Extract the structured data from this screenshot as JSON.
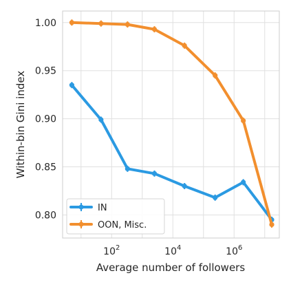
{
  "chart_data": {
    "type": "line",
    "xlabel": "Average number of followers",
    "ylabel": "Within-bin Gini index",
    "x_scale": "log",
    "xlim": [
      2.5,
      30000000
    ],
    "ylim": [
      0.776,
      1.012
    ],
    "grid": true,
    "legend_position": "lower-left",
    "x_ticks": [
      {
        "value": 100,
        "base": "10",
        "exp": "2"
      },
      {
        "value": 10000,
        "base": "10",
        "exp": "4"
      },
      {
        "value": 1000000,
        "base": "10",
        "exp": "6"
      }
    ],
    "y_ticks": [
      {
        "value": 0.8,
        "label": "0.80"
      },
      {
        "value": 0.85,
        "label": "0.85"
      },
      {
        "value": 0.9,
        "label": "0.90"
      },
      {
        "value": 0.95,
        "label": "0.95"
      },
      {
        "value": 1.0,
        "label": "1.00"
      }
    ],
    "series": [
      {
        "name": "IN",
        "color": "#2b9ae2",
        "x": [
          5,
          45,
          330,
          2500,
          24000,
          240000,
          2000000,
          17000000
        ],
        "y": [
          0.935,
          0.899,
          0.848,
          0.843,
          0.83,
          0.818,
          0.834,
          0.795
        ]
      },
      {
        "name": "OON, Misc.",
        "color": "#f28f2e",
        "x": [
          5,
          45,
          330,
          2500,
          24000,
          240000,
          2000000,
          17000000
        ],
        "y": [
          1.0,
          0.999,
          0.998,
          0.993,
          0.976,
          0.945,
          0.898,
          0.79
        ]
      }
    ]
  }
}
